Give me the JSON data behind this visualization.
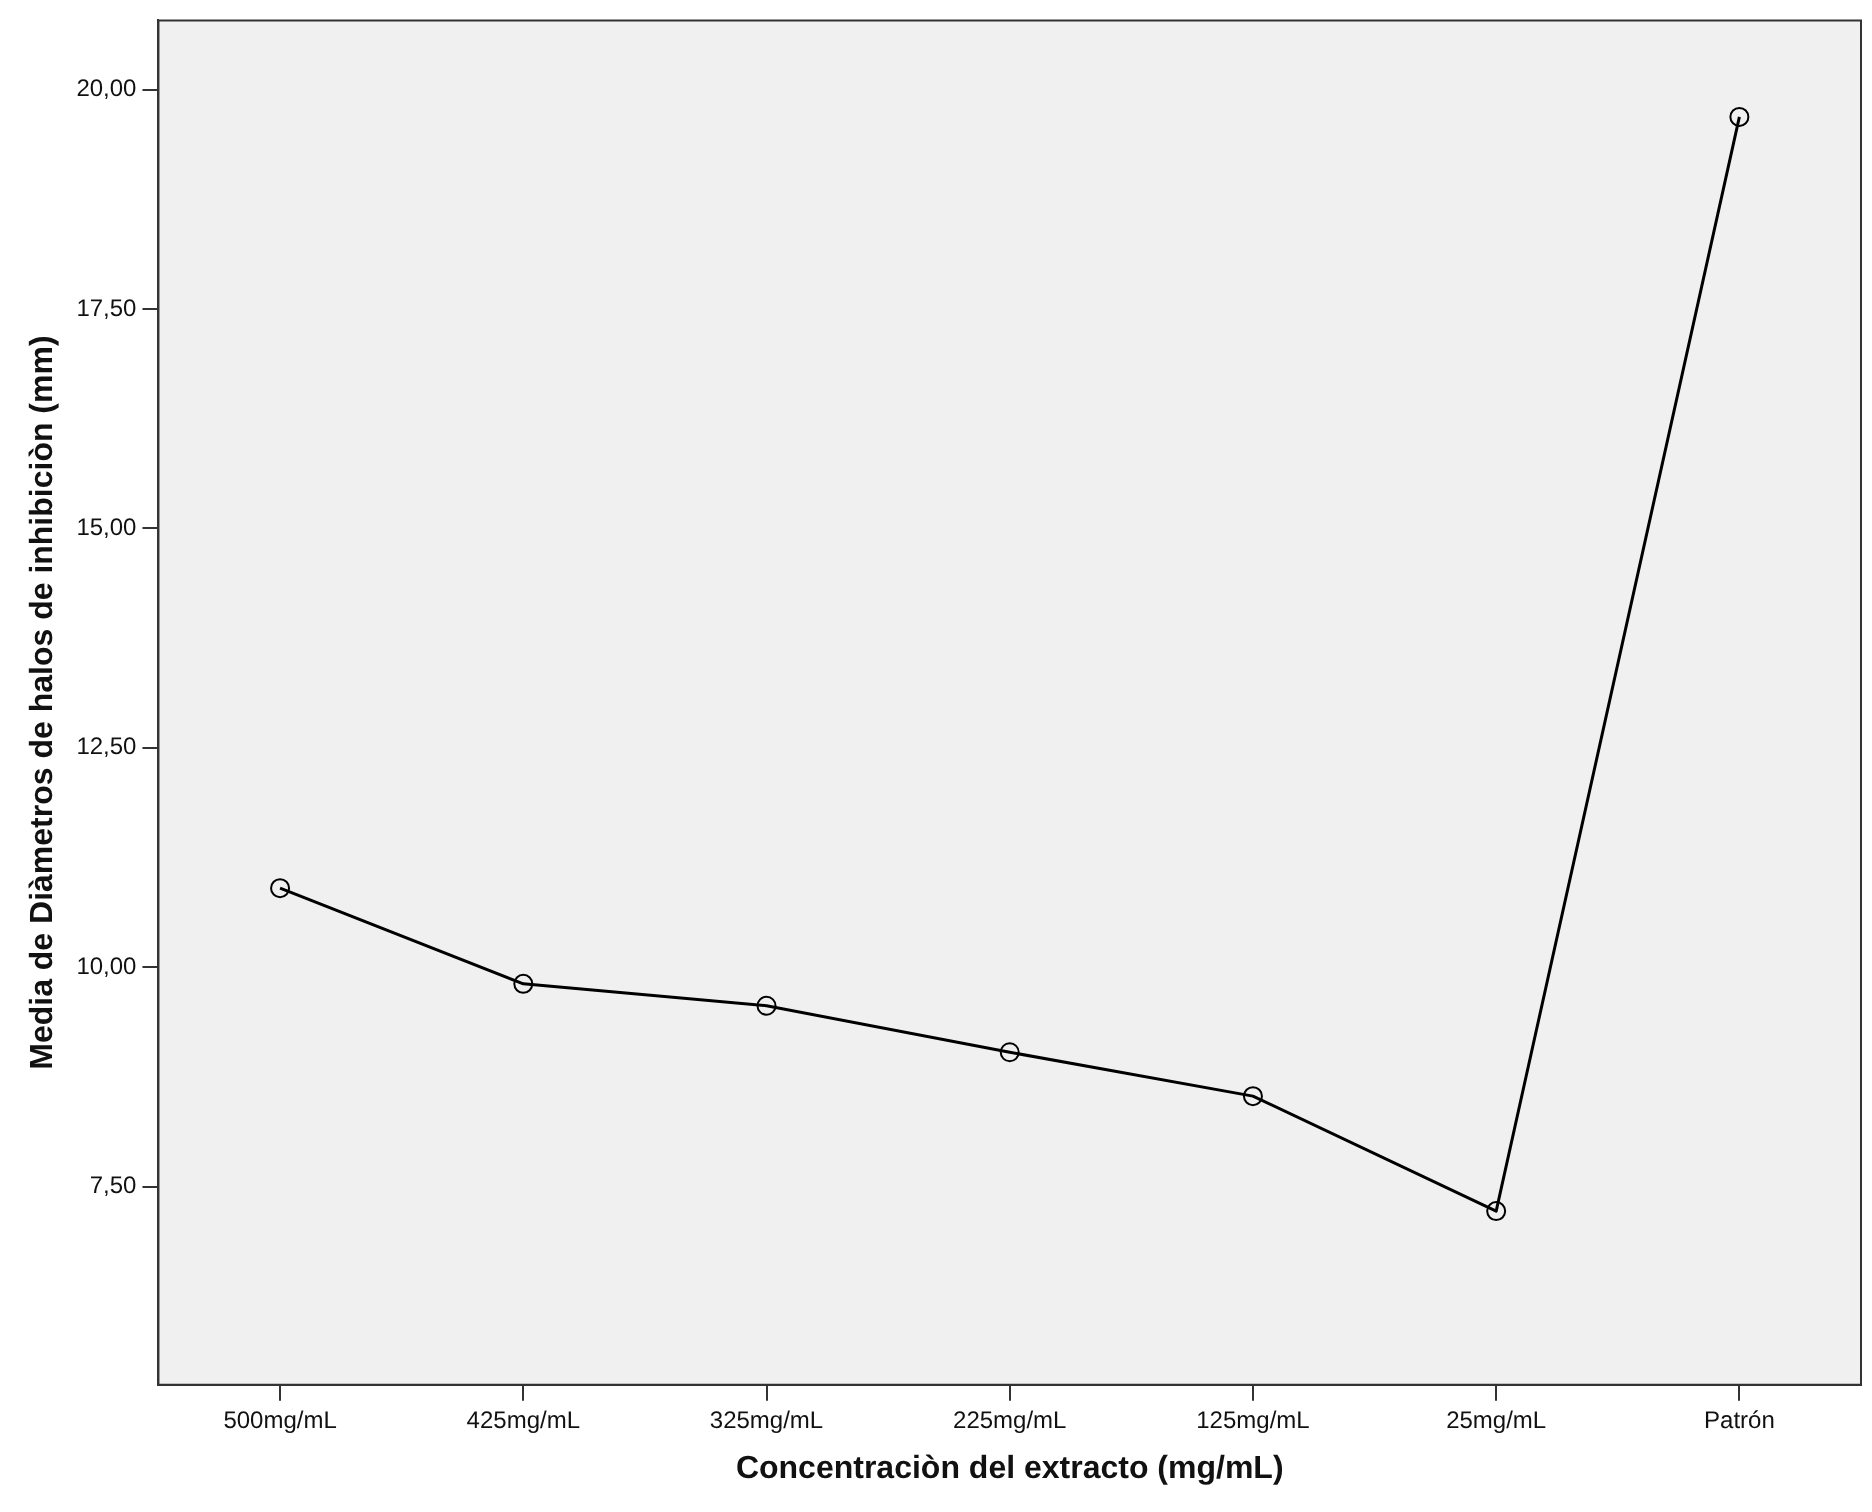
{
  "chart_data": {
    "type": "line",
    "xlabel": "Concentraciòn del extracto (mg/mL)",
    "ylabel": "Media de Diàmetros de halos de inhibiciòn (mm)",
    "categories": [
      "500mg/mL",
      "425mg/mL",
      "325mg/mL",
      "225mg/mL",
      "125mg/mL",
      "25mg/mL",
      "Patrón"
    ],
    "series": [
      {
        "color": "#000000",
        "values": [
          10.9,
          9.81,
          9.56,
          9.03,
          8.53,
          7.22,
          19.69
        ]
      }
    ],
    "ylim": [
      5.24,
      20.79
    ],
    "yticks": [
      {
        "value": 7.5,
        "label": "7,50"
      },
      {
        "value": 10,
        "label": "10,00"
      },
      {
        "value": 12.5,
        "label": "12,50"
      },
      {
        "value": 15,
        "label": "15,00"
      },
      {
        "value": 17.5,
        "label": "17,50"
      },
      {
        "value": 20,
        "label": "20,00"
      }
    ],
    "grid": false,
    "legend": false,
    "marker": "circle",
    "line_style": "solid"
  }
}
